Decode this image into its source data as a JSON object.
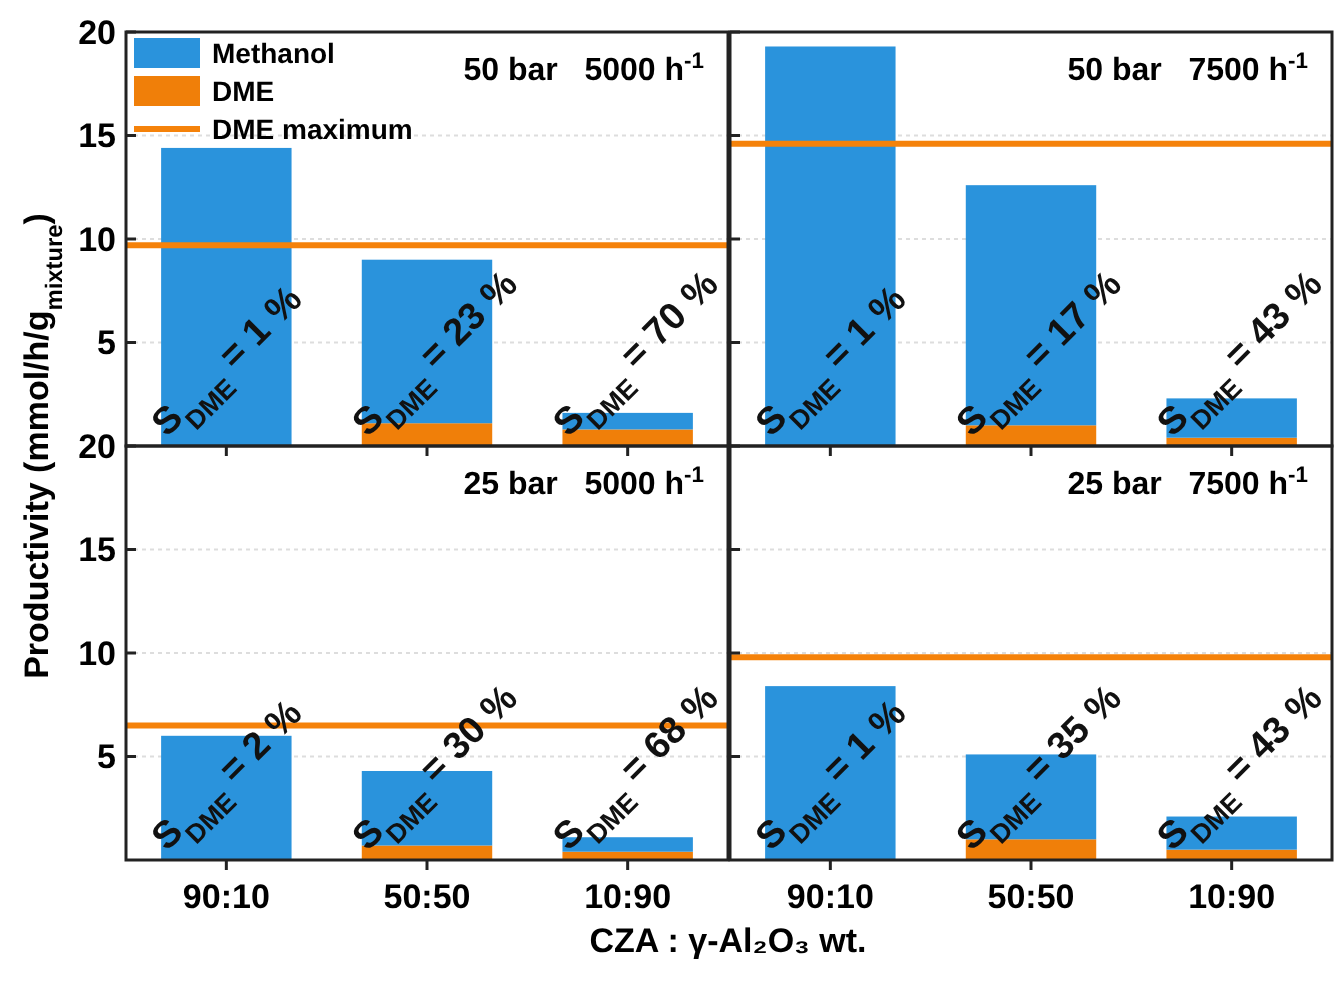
{
  "chart_data": [
    {
      "type": "bar",
      "title": "50 bar   5000 h$^{-1}$",
      "ylabel": "Productivity (mmol/h/g$_{mixture}$)",
      "categories": [
        "90:10",
        "50:50",
        "10:90"
      ],
      "stacked": true,
      "ylim": [
        0,
        20
      ],
      "yticks": [
        5,
        10,
        15,
        20
      ],
      "grid": "y",
      "tick_labels": "y",
      "legend": "top left",
      "series": [
        {
          "name": "DME",
          "color": "#f07f09",
          "values": [
            null,
            1.1,
            0.8
          ]
        },
        {
          "name": "Methanol",
          "color": "#2a93dc",
          "values": [
            14.4,
            7.9,
            0.8
          ]
        }
      ],
      "ref_lines": [
        {
          "axis": "y",
          "value": 9.7,
          "label": "DME maximum",
          "color": "#f5820a"
        }
      ],
      "annotations": [
        {
          "text": "S$_{DME}$ = 1 %",
          "x": "90:10",
          "y": 0
        },
        {
          "text": "S$_{DME}$ = 23 %",
          "x": "50:50",
          "y": 0
        },
        {
          "text": "S$_{DME}$ = 70 %",
          "x": "10:90",
          "y": 0
        }
      ]
    },
    {
      "type": "bar",
      "title": "50 bar   7500 h$^{-1}$",
      "categories": [
        "90:10",
        "50:50",
        "10:90"
      ],
      "stacked": true,
      "ylim": [
        0,
        20
      ],
      "yticks": [
        5,
        10,
        15,
        20
      ],
      "grid": "y",
      "tick_labels": false,
      "series": [
        {
          "color": "#f07f09",
          "values": [
            null,
            1.0,
            0.4
          ]
        },
        {
          "color": "#2a93dc",
          "values": [
            19.3,
            11.6,
            1.9
          ]
        }
      ],
      "ref_lines": [
        {
          "axis": "y",
          "value": 14.6,
          "color": "#f5820a"
        }
      ],
      "annotations": [
        {
          "text": "S$_{DME}$ = 1 %",
          "x": "90:10",
          "y": 0
        },
        {
          "text": "S$_{DME}$ = 17 %",
          "x": "50:50",
          "y": 0
        },
        {
          "text": "S$_{DME}$ = 43 %",
          "x": "10:90",
          "y": 0
        }
      ]
    },
    {
      "type": "bar",
      "title": "25 bar   5000 h$^{-1}$",
      "xlabel": "CZA : γ-Al₂O₃ wt.",
      "categories": [
        "90:10",
        "50:50",
        "10:90"
      ],
      "stacked": true,
      "ylim": [
        0,
        20
      ],
      "yticks": [
        5,
        10,
        15,
        20
      ],
      "grid": "y",
      "series": [
        {
          "color": "#f07f09",
          "values": [
            null,
            0.7,
            0.4
          ]
        },
        {
          "color": "#2a93dc",
          "values": [
            6.0,
            3.6,
            0.7
          ]
        }
      ],
      "ref_lines": [
        {
          "axis": "y",
          "value": 6.5,
          "color": "#f5820a"
        }
      ],
      "annotations": [
        {
          "text": "S$_{DME}$ = 2 %",
          "x": "90:10",
          "y": 0
        },
        {
          "text": "S$_{DME}$ = 30 %",
          "x": "50:50",
          "y": 0
        },
        {
          "text": "S$_{DME}$ = 68 %",
          "x": "10:90",
          "y": 0
        }
      ]
    },
    {
      "type": "bar",
      "title": "25 bar   7500 h$^{-1}$",
      "categories": [
        "90:10",
        "50:50",
        "10:90"
      ],
      "stacked": true,
      "ylim": [
        0,
        20
      ],
      "yticks": [
        5,
        10,
        15,
        20
      ],
      "grid": "y",
      "tick_labels": "x",
      "series": [
        {
          "color": "#f07f09",
          "values": [
            null,
            1.0,
            0.5
          ]
        },
        {
          "color": "#2a93dc",
          "values": [
            8.4,
            4.1,
            1.6
          ]
        }
      ],
      "ref_lines": [
        {
          "axis": "y",
          "value": 9.8,
          "color": "#f5820a"
        }
      ],
      "annotations": [
        {
          "text": "S$_{DME}$ = 1 %",
          "x": "90:10",
          "y": 0
        },
        {
          "text": "S$_{DME}$ = 35 %",
          "x": "50:50",
          "y": 0
        },
        {
          "text": "S$_{DME}$ = 43 %",
          "x": "10:90",
          "y": 0
        }
      ]
    }
  ]
}
